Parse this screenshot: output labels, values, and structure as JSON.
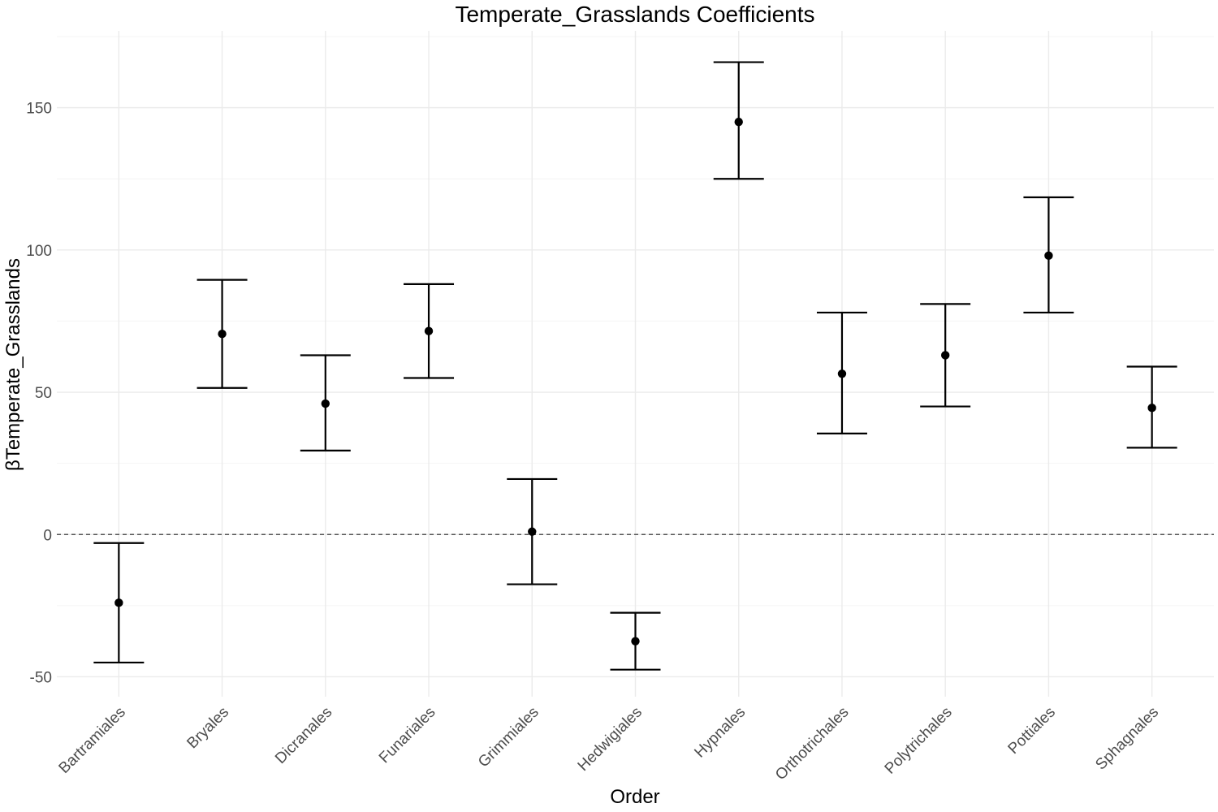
{
  "chart_data": {
    "type": "errorbar",
    "title": "Temperate_Grasslands Coefficients",
    "xlabel": "Order",
    "ylabel": "βTemperate_Grasslands",
    "categories": [
      "Bartramiales",
      "Bryales",
      "Dicranales",
      "Funariales",
      "Grimmiales",
      "Hedwigiales",
      "Hypnales",
      "Orthotrichales",
      "Polytrichales",
      "Pottiales",
      "Sphagnales"
    ],
    "estimates": [
      -24,
      70.5,
      46,
      71.5,
      1,
      -37.5,
      145,
      56.5,
      63,
      98,
      44.5
    ],
    "lower": [
      -45,
      51.5,
      29.5,
      55,
      -17.5,
      -47.5,
      125,
      35.5,
      45,
      78,
      30.5
    ],
    "upper": [
      -3,
      89.5,
      63,
      88,
      19.5,
      -27.5,
      166,
      78,
      81,
      118.5,
      59
    ],
    "yticks": [
      -50,
      0,
      50,
      100,
      150
    ],
    "ytick_labels": [
      "-50",
      "0",
      "50",
      "100",
      "150"
    ],
    "ylim": [
      -57,
      177
    ],
    "reference_line": 0,
    "grid": true,
    "legend": false
  }
}
